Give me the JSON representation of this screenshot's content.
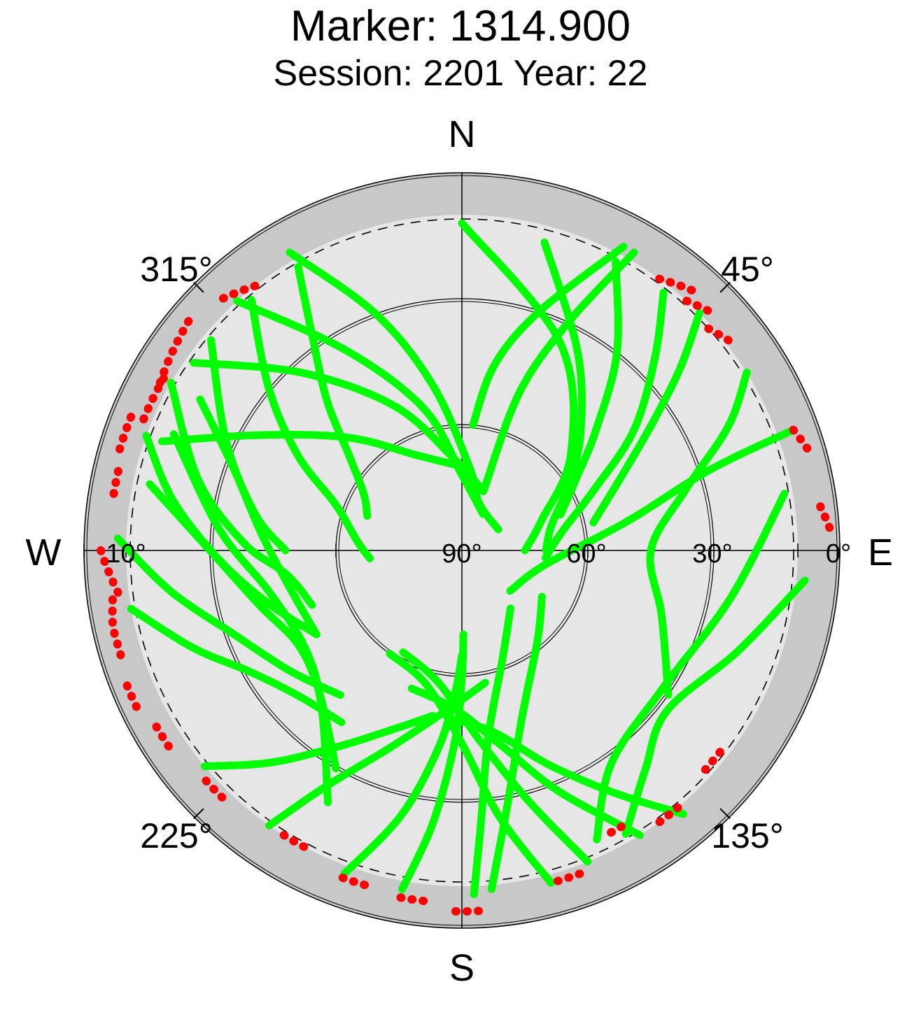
{
  "title": "Marker: 1314.900",
  "subtitle": "Session: 2201 Year: 22",
  "chart_data": {
    "type": "scatter",
    "projection": "polar-skyplot",
    "title": "Marker: 1314.900",
    "subtitle": "Session: 2201 Year: 22",
    "azimuth_direction": "clockwise-from-north",
    "elevation_range": [
      0,
      90
    ],
    "elevation_mask_deg": 10,
    "cardinal_labels": {
      "N": "N",
      "E": "E",
      "S": "S",
      "W": "W"
    },
    "azimuth_tick_labels": [
      {
        "azimuth": 45,
        "label": "45°"
      },
      {
        "azimuth": 135,
        "label": "135°"
      },
      {
        "azimuth": 225,
        "label": "225°"
      },
      {
        "azimuth": 315,
        "label": "315°"
      }
    ],
    "elevation_tick_labels": [
      {
        "elevation": 0,
        "label": "0°"
      },
      {
        "elevation": 10,
        "label": "10°"
      },
      {
        "elevation": 30,
        "label": "30°"
      },
      {
        "elevation": 60,
        "label": "60°"
      },
      {
        "elevation": 90,
        "label": "90°"
      }
    ],
    "elevation_circles": [
      30,
      60
    ],
    "colors": {
      "tracked": "#00ff00",
      "below_threshold": "#ff0000",
      "outer_band": "#c8c8c8",
      "inner_disk": "#e6e6e6"
    },
    "series": [
      {
        "name": "",
        "color": "#00ff00",
        "tracks": [
          {
            "az": [
              0,
              25,
              48,
              70,
              90
            ],
            "el": [
              12,
              35,
              55,
              70,
              75
            ]
          },
          {
            "az": [
              15,
              30,
              45,
              58,
              75,
              90
            ],
            "el": [
              14,
              35,
              50,
              60,
              68,
              70
            ]
          },
          {
            "az": [
              28,
              38,
              48,
              58,
              70
            ],
            "el": [
              12,
              30,
              47,
              58,
              65
            ]
          },
          {
            "az": [
              38,
              45,
              55,
              65,
              80,
              95
            ],
            "el": [
              12,
              25,
              40,
              55,
              66,
              70
            ]
          },
          {
            "az": [
              45,
              50,
              56,
              65,
              78
            ],
            "el": [
              10,
              22,
              35,
              48,
              58
            ]
          },
          {
            "az": [
              58,
              65,
              75,
              90,
              108,
              125
            ],
            "el": [
              10,
              20,
              35,
              45,
              40,
              30
            ]
          },
          {
            "az": [
              80,
              100,
              125,
              145,
              155
            ],
            "el": [
              12,
              25,
              32,
              28,
              14
            ]
          },
          {
            "az": [
              30,
              25,
              20,
              20
            ],
            "el": [
              8,
              30,
              50,
              75
            ]
          },
          {
            "az": [
              28,
              18,
              10,
              5
            ],
            "el": [
              8,
              30,
              45,
              60
            ]
          },
          {
            "az": [
              95,
              110,
              128,
              140,
              150
            ],
            "el": [
              8,
              20,
              28,
              22,
              12
            ]
          },
          {
            "az": [
              70,
              72,
              80,
              100,
              130
            ],
            "el": [
              6,
              28,
              50,
              70,
              75
            ]
          },
          {
            "az": [
              330,
              325,
              318,
              310,
              300,
              290
            ],
            "el": [
              12,
              28,
              42,
              55,
              63,
              66
            ]
          },
          {
            "az": [
              320,
              310,
              300,
              290,
              275,
              265
            ],
            "el": [
              12,
              30,
              45,
              58,
              65,
              68
            ]
          },
          {
            "az": [
              310,
              295,
              280,
              270
            ],
            "el": [
              12,
              28,
              40,
              48
            ]
          },
          {
            "az": [
              300,
              285,
              272,
              262,
              250
            ],
            "el": [
              10,
              25,
              38,
              48,
              52
            ]
          },
          {
            "az": [
              290,
              280,
              268,
              255,
              240
            ],
            "el": [
              10,
              20,
              32,
              42,
              50
            ]
          },
          {
            "az": [
              272,
              262,
              250,
              235,
              220
            ],
            "el": [
              8,
              20,
              32,
              40,
              45
            ]
          },
          {
            "az": [
              260,
              250,
              240,
              228,
              215
            ],
            "el": [
              10,
              22,
              32,
              38,
              40
            ]
          },
          {
            "az": [
              330,
              340,
              350,
              5,
              20,
              60
            ],
            "el": [
              8,
              30,
              50,
              70,
              78,
              80
            ]
          },
          {
            "az": [
              318,
              330,
              345,
              0,
              30
            ],
            "el": [
              10,
              35,
              55,
              72,
              80
            ]
          },
          {
            "az": [
              305,
              318,
              335,
              355,
              20
            ],
            "el": [
              12,
              33,
              52,
              68,
              75
            ]
          },
          {
            "az": [
              290,
              300,
              315,
              335,
              0
            ],
            "el": [
              14,
              35,
              52,
              65,
              70
            ]
          },
          {
            "az": [
              282,
              270,
              255,
              240,
              225,
              210
            ],
            "el": [
              14,
              30,
              40,
              45,
              42,
              30
            ]
          },
          {
            "az": [
              292,
              275,
              258,
              238,
              222,
              208
            ],
            "el": [
              16,
              32,
              43,
              46,
              40,
              22
            ]
          },
          {
            "az": [
              300,
              290,
              275,
              258,
              240
            ],
            "el": [
              18,
              32,
              42,
              48,
              50
            ]
          },
          {
            "az": [
              200,
              193,
              187,
              183,
              180
            ],
            "el": [
              8,
              25,
              42,
              55,
              65
            ]
          },
          {
            "az": [
              190,
              186,
              182,
              180,
              179
            ],
            "el": [
              8,
              25,
              45,
              60,
              70
            ]
          },
          {
            "az": [
              178,
              176,
              172,
              160,
              140
            ],
            "el": [
              8,
              25,
              45,
              62,
              72
            ]
          },
          {
            "az": [
              175,
              170,
              160,
              140,
              120
            ],
            "el": [
              9,
              28,
              48,
              62,
              68
            ]
          },
          {
            "az": [
              215,
              210,
              200,
              185,
              170
            ],
            "el": [
              10,
              25,
              40,
              52,
              58
            ]
          },
          {
            "az": [
              158,
              165,
              175,
              190,
              210
            ],
            "el": [
              10,
              28,
              45,
              58,
              62
            ]
          },
          {
            "az": [
              165,
              172,
              180,
              195,
              215
            ],
            "el": [
              8,
              26,
              44,
              57,
              60
            ]
          },
          {
            "az": [
              148,
              158,
              168,
              182,
              200
            ],
            "el": [
              10,
              28,
              42,
              52,
              55
            ]
          },
          {
            "az": [
              230,
              222,
              212,
              200,
              190
            ],
            "el": [
              10,
              22,
              35,
              45,
              50
            ]
          },
          {
            "az": [
              140,
              148,
              158,
              170,
              185
            ],
            "el": [
              8,
              22,
              35,
              46,
              50
            ]
          }
        ]
      },
      {
        "name": "",
        "color": "#ff0000",
        "tracks": [
          {
            "az": [
              36,
              38,
              40,
              42
            ],
            "el": [
              10,
              9,
              8,
              7
            ]
          },
          {
            "az": [
              42,
              44,
              46
            ],
            "el": [
              10,
              9,
              8
            ]
          },
          {
            "az": [
              48,
              50,
              52
            ],
            "el": [
              11,
              10,
              9
            ]
          },
          {
            "az": [
              70,
              72,
              74
            ],
            "el": [
              6,
              5,
              4
            ]
          },
          {
            "az": [
              83,
              85,
              87
            ],
            "el": [
              4,
              3,
              2
            ]
          },
          {
            "az": [
              322,
              320,
              318,
              316
            ],
            "el": [
              10,
              9,
              8,
              7
            ]
          },
          {
            "az": [
              310,
              306,
              302,
              298
            ],
            "el": [
              5,
              6,
              7,
              8
            ]
          },
          {
            "az": [
              300,
              297,
              294,
              291
            ],
            "el": [
              8,
              8,
              8,
              8
            ]
          },
          {
            "az": [
              292,
              290,
              288,
              286
            ],
            "el": [
              5,
              5,
              5,
              5
            ]
          },
          {
            "az": [
              283,
              281,
              279
            ],
            "el": [
              6,
              6,
              6
            ]
          },
          {
            "az": [
              270,
              268,
              266,
              264,
              262
            ],
            "el": [
              4,
              5,
              6,
              7,
              8
            ]
          },
          {
            "az": [
              262,
              258,
              255,
              252
            ],
            "el": [
              6,
              5,
              5,
              5
            ]
          },
          {
            "az": [
              248,
              246,
              244
            ],
            "el": [
              4,
              4,
              4
            ]
          },
          {
            "az": [
              240,
              238,
              236
            ],
            "el": [
              6,
              6,
              6
            ]
          },
          {
            "az": [
              228,
              226,
              224
            ],
            "el": [
              8,
              8,
              8
            ]
          },
          {
            "az": [
              212,
              210,
              208
            ],
            "el": [
              10,
              10,
              10
            ]
          },
          {
            "az": [
              200,
              198,
              196
            ],
            "el": [
              7,
              7,
              7
            ]
          },
          {
            "az": [
              190,
              188,
              186
            ],
            "el": [
              6,
              6,
              6
            ]
          },
          {
            "az": [
              181,
              179,
              177
            ],
            "el": [
              4,
              4,
              4
            ]
          },
          {
            "az": [
              160,
              162,
              164
            ],
            "el": [
              8,
              8,
              8
            ]
          },
          {
            "az": [
              150,
              152,
              154
            ],
            "el": [
              14,
              14,
              14
            ]
          },
          {
            "az": [
              140,
              142,
              144
            ],
            "el": [
              10,
              10,
              10
            ]
          },
          {
            "az": [
              128,
              130,
              132
            ],
            "el": [
              12,
              12,
              12
            ]
          }
        ]
      }
    ]
  }
}
